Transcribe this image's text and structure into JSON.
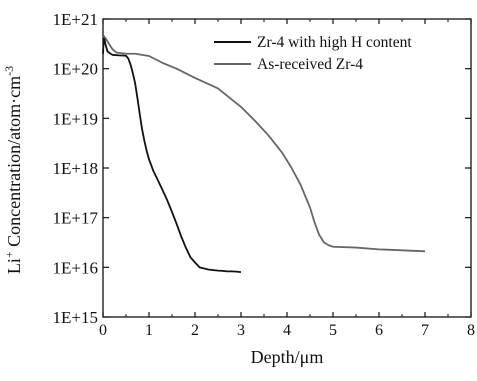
{
  "chart_data": {
    "type": "line",
    "xlabel": "Depth/μm",
    "ylabel_main": "Li",
    "ylabel_sup": "+",
    "ylabel_rest": " Concentration/atom·cm",
    "ylabel_exp": "-3",
    "xlim": [
      0,
      8
    ],
    "ylim": [
      1000000000000000.0,
      1e+21
    ],
    "yscale": "log",
    "grid": false,
    "legend_position": "top-right",
    "x_ticks": [
      "0",
      "1",
      "2",
      "3",
      "4",
      "5",
      "6",
      "7",
      "8"
    ],
    "y_ticks": [
      "1E+15",
      "1E+16",
      "1E+17",
      "1E+18",
      "1E+19",
      "1E+20",
      "1E+21"
    ],
    "series": [
      {
        "name": "Zr-4 with high H content",
        "color": "#111111",
        "points": [
          [
            0.0,
            2e+20
          ],
          [
            0.02,
            4.5e+20
          ],
          [
            0.05,
            3.2e+20
          ],
          [
            0.1,
            2.2e+20
          ],
          [
            0.2,
            1.9e+20
          ],
          [
            0.35,
            1.85e+20
          ],
          [
            0.5,
            1.82e+20
          ],
          [
            0.55,
            1.6e+20
          ],
          [
            0.6,
            1.2e+20
          ],
          [
            0.65,
            8e+19
          ],
          [
            0.7,
            5e+19
          ],
          [
            0.75,
            2.5e+19
          ],
          [
            0.8,
            1.2e+19
          ],
          [
            0.85,
            6e+18
          ],
          [
            0.9,
            3.5e+18
          ],
          [
            0.95,
            2.2e+18
          ],
          [
            1.0,
            1.5e+18
          ],
          [
            1.1,
            8.5e+17
          ],
          [
            1.2,
            5.5e+17
          ],
          [
            1.3,
            3.5e+17
          ],
          [
            1.4,
            2.2e+17
          ],
          [
            1.5,
            1.3e+17
          ],
          [
            1.6,
            7.5e+16
          ],
          [
            1.7,
            4.2e+16
          ],
          [
            1.8,
            2.5e+16
          ],
          [
            1.9,
            1.6e+16
          ],
          [
            2.0,
            1.25e+16
          ],
          [
            2.1,
            1e+16
          ],
          [
            2.2,
            9500000000000000.0
          ],
          [
            2.3,
            9000000000000000.0
          ],
          [
            2.4,
            8800000000000000.0
          ],
          [
            2.5,
            8600000000000000.0
          ],
          [
            2.6,
            8500000000000000.0
          ],
          [
            2.7,
            8300000000000000.0
          ],
          [
            2.8,
            8300000000000000.0
          ],
          [
            2.9,
            8200000000000000.0
          ],
          [
            3.0,
            8000000000000000.0
          ]
        ]
      },
      {
        "name": "As-received Zr-4",
        "color": "#666666",
        "points": [
          [
            0.0,
            4.5e+20
          ],
          [
            0.05,
            4.2e+20
          ],
          [
            0.1,
            3.5e+20
          ],
          [
            0.2,
            2.5e+20
          ],
          [
            0.3,
            2.1e+20
          ],
          [
            0.5,
            2e+20
          ],
          [
            0.7,
            2e+20
          ],
          [
            1.0,
            1.8e+20
          ],
          [
            1.3,
            1.3e+20
          ],
          [
            1.6,
            1e+20
          ],
          [
            2.0,
            6.5e+19
          ],
          [
            2.5,
            4e+19
          ],
          [
            3.0,
            1.7e+19
          ],
          [
            3.3,
            9e+18
          ],
          [
            3.6,
            4.5e+18
          ],
          [
            3.9,
            2e+18
          ],
          [
            4.1,
            1e+18
          ],
          [
            4.3,
            4.5e+17
          ],
          [
            4.5,
            1.6e+17
          ],
          [
            4.6,
            8e+16
          ],
          [
            4.7,
            4.5e+16
          ],
          [
            4.8,
            3.2e+16
          ],
          [
            4.9,
            2.8e+16
          ],
          [
            5.0,
            2.6e+16
          ],
          [
            5.5,
            2.5e+16
          ],
          [
            6.0,
            2.3e+16
          ],
          [
            6.5,
            2.2e+16
          ],
          [
            7.0,
            2.1e+16
          ]
        ]
      }
    ]
  }
}
